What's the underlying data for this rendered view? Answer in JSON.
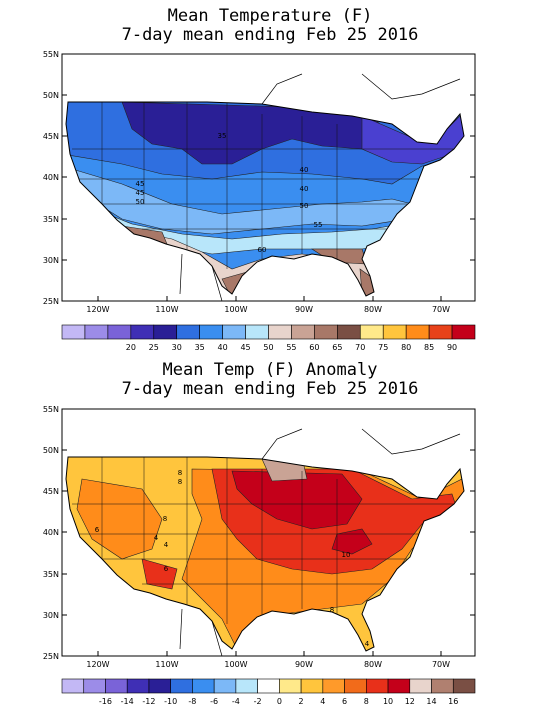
{
  "panels": [
    {
      "title_line1": "Mean Temperature (F)",
      "title_line2": "7-day mean ending Feb 25 2016",
      "lat_ticks": [
        "55N",
        "50N",
        "45N",
        "40N",
        "35N",
        "30N",
        "25N"
      ],
      "lon_ticks": [
        "120W",
        "110W",
        "100W",
        "90W",
        "80W",
        "70W"
      ],
      "contour_labels": [
        "35",
        "40",
        "45",
        "40",
        "45",
        "50",
        "50",
        "55",
        "60"
      ],
      "colorbar_labels": [
        "20",
        "25",
        "30",
        "35",
        "40",
        "45",
        "50",
        "55",
        "60",
        "65",
        "70",
        "75",
        "80",
        "85",
        "90"
      ],
      "colorbar_colors": [
        "#c3b8f5",
        "#9c8ce8",
        "#7a63d8",
        "#3f2fb5",
        "#2a1f96",
        "#2f6fe0",
        "#3a8ef0",
        "#7cb8f7",
        "#b8e6fa",
        "#e8d4cc",
        "#c9a395",
        "#a87868",
        "#7a4f44",
        "#ffe98a",
        "#ffc53d",
        "#ff8c1a",
        "#e8421a",
        "#c4001a"
      ]
    },
    {
      "title_line1": "Mean Temp (F) Anomaly",
      "title_line2": "7-day mean ending Feb 25 2016",
      "lat_ticks": [
        "55N",
        "50N",
        "45N",
        "40N",
        "35N",
        "30N",
        "25N"
      ],
      "lon_ticks": [
        "120W",
        "110W",
        "100W",
        "90W",
        "80W",
        "70W"
      ],
      "contour_labels": [
        "8",
        "8",
        "8",
        "6",
        "4",
        "4",
        "10",
        "6",
        "8",
        "4"
      ],
      "colorbar_labels": [
        "-16",
        "-14",
        "-12",
        "-10",
        "-8",
        "-6",
        "-4",
        "-2",
        "0",
        "2",
        "4",
        "6",
        "8",
        "10",
        "12",
        "14",
        "16"
      ],
      "colorbar_colors": [
        "#c3b8f5",
        "#9c8ce8",
        "#7a63d8",
        "#3f2fb5",
        "#2a1f96",
        "#2f6fe0",
        "#3a8ef0",
        "#7cb8f7",
        "#b8e6fa",
        "#ffffff",
        "#ffe98a",
        "#ffc53d",
        "#ff9a2a",
        "#f26b1a",
        "#e8301a",
        "#c4001a",
        "#e8d4cc",
        "#b08070",
        "#7a4f44"
      ]
    }
  ],
  "fill_colors": {
    "t_ne": "#4a40d0",
    "t_north": "#2a1f96",
    "t_mid": "#2f6fe0",
    "t_central": "#3a8ef0",
    "t_light": "#7cb8f7",
    "t_pale": "#b8e6fa",
    "t_tan": "#e8d4cc",
    "t_brown": "#a87868",
    "a_base": "#ffc53d",
    "a_orange": "#ff8c1a",
    "a_red": "#e8301a",
    "a_dark": "#c4001a",
    "a_tan": "#c9a395"
  }
}
